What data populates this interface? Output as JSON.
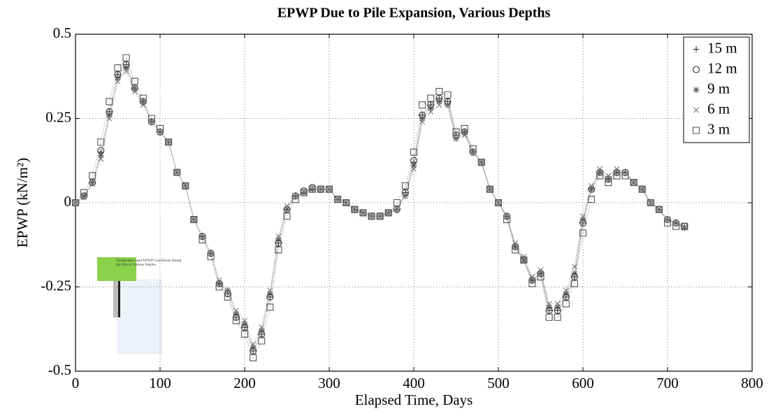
{
  "chart_data": {
    "type": "line",
    "title": "EPWP Due to Pile Expansion, Various Depths",
    "xlabel": "Elapsed Time, Days",
    "ylabel": "EPWP (kN/m²)",
    "inset_text": "Temperature and EPWP Conditions Along the Pile at Various Depths",
    "x": [
      0,
      10,
      20,
      30,
      40,
      50,
      60,
      70,
      80,
      90,
      100,
      110,
      120,
      130,
      140,
      150,
      160,
      170,
      180,
      190,
      200,
      210,
      220,
      230,
      240,
      250,
      260,
      270,
      280,
      290,
      300,
      310,
      320,
      330,
      340,
      350,
      360,
      370,
      380,
      390,
      400,
      410,
      420,
      430,
      440,
      450,
      460,
      470,
      480,
      490,
      500,
      510,
      520,
      530,
      540,
      550,
      560,
      570,
      580,
      590,
      600,
      610,
      620,
      630,
      640,
      650,
      660,
      670,
      680,
      690,
      700,
      710,
      720
    ],
    "series": [
      {
        "name": "15 m",
        "color": "#333333",
        "marker": "plus",
        "values": [
          0.0,
          0.02,
          0.06,
          0.15,
          0.27,
          0.38,
          0.41,
          0.34,
          0.3,
          0.24,
          0.21,
          0.18,
          0.09,
          0.05,
          -0.05,
          -0.1,
          -0.15,
          -0.24,
          -0.27,
          -0.34,
          -0.37,
          -0.44,
          -0.39,
          -0.28,
          -0.12,
          -0.02,
          0.02,
          0.03,
          0.04,
          0.04,
          0.04,
          0.01,
          0.0,
          -0.02,
          -0.03,
          -0.04,
          -0.04,
          -0.03,
          -0.02,
          0.03,
          0.12,
          0.26,
          0.29,
          0.31,
          0.3,
          0.2,
          0.21,
          0.15,
          0.12,
          0.04,
          0.0,
          -0.04,
          -0.13,
          -0.17,
          -0.23,
          -0.21,
          -0.32,
          -0.32,
          -0.28,
          -0.22,
          -0.06,
          0.04,
          0.09,
          0.07,
          0.09,
          0.09,
          0.06,
          0.04,
          0.0,
          -0.02,
          -0.05,
          -0.06,
          -0.07
        ]
      },
      {
        "name": "12 m",
        "color": "#333333",
        "marker": "circle",
        "values": [
          0.0,
          0.02,
          0.06,
          0.155,
          0.27,
          0.38,
          0.41,
          0.34,
          0.3,
          0.24,
          0.21,
          0.18,
          0.09,
          0.05,
          -0.05,
          -0.1,
          -0.15,
          -0.24,
          -0.27,
          -0.34,
          -0.37,
          -0.44,
          -0.39,
          -0.28,
          -0.12,
          -0.02,
          0.02,
          0.035,
          0.045,
          0.04,
          0.04,
          0.01,
          0.0,
          -0.02,
          -0.03,
          -0.04,
          -0.04,
          -0.03,
          -0.02,
          0.03,
          0.125,
          0.26,
          0.29,
          0.31,
          0.3,
          0.2,
          0.21,
          0.15,
          0.12,
          0.04,
          0.0,
          -0.04,
          -0.13,
          -0.17,
          -0.23,
          -0.21,
          -0.32,
          -0.32,
          -0.28,
          -0.22,
          -0.06,
          0.04,
          0.09,
          0.07,
          0.09,
          0.09,
          0.06,
          0.04,
          0.0,
          -0.02,
          -0.05,
          -0.06,
          -0.07
        ]
      },
      {
        "name": "9 m",
        "color": "#555555",
        "marker": "star",
        "values": [
          0.0,
          0.02,
          0.06,
          0.14,
          0.26,
          0.37,
          0.4,
          0.34,
          0.3,
          0.24,
          0.21,
          0.18,
          0.09,
          0.05,
          -0.05,
          -0.1,
          -0.15,
          -0.24,
          -0.26,
          -0.33,
          -0.36,
          -0.43,
          -0.38,
          -0.27,
          -0.11,
          -0.02,
          0.02,
          0.03,
          0.04,
          0.04,
          0.04,
          0.01,
          0.0,
          -0.02,
          -0.03,
          -0.04,
          -0.04,
          -0.03,
          -0.02,
          0.02,
          0.11,
          0.25,
          0.28,
          0.3,
          0.29,
          0.19,
          0.21,
          0.15,
          0.12,
          0.04,
          0.0,
          -0.04,
          -0.13,
          -0.17,
          -0.23,
          -0.21,
          -0.31,
          -0.31,
          -0.27,
          -0.21,
          -0.05,
          0.04,
          0.09,
          0.07,
          0.09,
          0.09,
          0.06,
          0.04,
          0.0,
          -0.02,
          -0.05,
          -0.06,
          -0.075
        ]
      },
      {
        "name": "6 m",
        "color": "#777777",
        "marker": "cross",
        "values": [
          0.0,
          0.015,
          0.055,
          0.13,
          0.25,
          0.36,
          0.39,
          0.33,
          0.29,
          0.24,
          0.21,
          0.18,
          0.09,
          0.05,
          -0.05,
          -0.1,
          -0.15,
          -0.23,
          -0.26,
          -0.32,
          -0.35,
          -0.42,
          -0.37,
          -0.26,
          -0.1,
          -0.01,
          0.02,
          0.03,
          0.04,
          0.04,
          0.04,
          0.01,
          0.0,
          -0.02,
          -0.03,
          -0.04,
          -0.04,
          -0.03,
          -0.02,
          0.02,
          0.1,
          0.24,
          0.27,
          0.29,
          0.29,
          0.19,
          0.2,
          0.15,
          0.12,
          0.04,
          0.0,
          -0.04,
          -0.12,
          -0.16,
          -0.22,
          -0.2,
          -0.3,
          -0.3,
          -0.26,
          -0.19,
          -0.04,
          0.05,
          0.1,
          0.08,
          0.1,
          0.09,
          0.06,
          0.04,
          0.0,
          -0.02,
          -0.05,
          -0.06,
          -0.075
        ]
      },
      {
        "name": "3 m",
        "color": "#555555",
        "marker": "square",
        "values": [
          0.0,
          0.03,
          0.08,
          0.18,
          0.3,
          0.4,
          0.43,
          0.36,
          0.31,
          0.25,
          0.22,
          0.18,
          0.09,
          0.05,
          -0.05,
          -0.11,
          -0.16,
          -0.25,
          -0.28,
          -0.35,
          -0.39,
          -0.46,
          -0.41,
          -0.31,
          -0.14,
          -0.04,
          0.01,
          0.03,
          0.04,
          0.04,
          0.04,
          0.01,
          0.0,
          -0.02,
          -0.03,
          -0.04,
          -0.04,
          -0.03,
          0.0,
          0.05,
          0.15,
          0.29,
          0.31,
          0.33,
          0.32,
          0.21,
          0.22,
          0.16,
          0.12,
          0.04,
          0.0,
          -0.05,
          -0.14,
          -0.17,
          -0.24,
          -0.22,
          -0.34,
          -0.34,
          -0.3,
          -0.24,
          -0.09,
          0.01,
          0.08,
          0.06,
          0.08,
          0.08,
          0.06,
          0.04,
          0.0,
          -0.02,
          -0.06,
          -0.07,
          -0.07
        ]
      }
    ],
    "xlim": [
      0,
      800
    ],
    "xticks": [
      0,
      100,
      200,
      300,
      400,
      500,
      600,
      700,
      800
    ],
    "ylim": [
      -0.5,
      0.5
    ],
    "yticks": [
      0.5,
      0.25,
      0,
      -0.25,
      -0.5
    ],
    "grid": true,
    "legend": "upper right"
  }
}
